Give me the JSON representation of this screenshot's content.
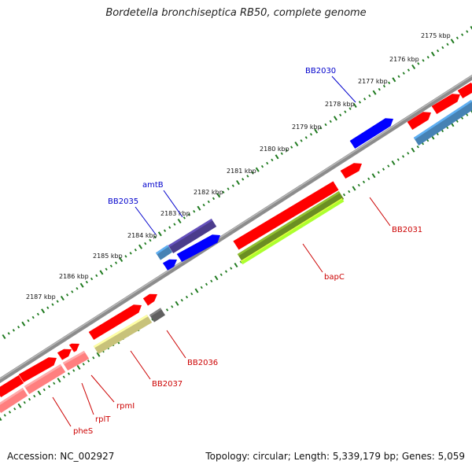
{
  "title": "Bordetella bronchiseptica RB50, complete genome",
  "footer": {
    "accession": "Accession: NC_002927",
    "summary": "Topology: circular; Length: 5,339,179 bp; Genes: 5,059"
  },
  "colors": {
    "backbone": "#8c8c8c",
    "tick": "#1f7a1f",
    "gene_forward": "#ff0000",
    "gene_reverse": "#0000ff",
    "label_forward": "#cc0000",
    "label_reverse": "#0000cc",
    "cds_red": "#ff7f7f",
    "cds_olive": "#6b8e23",
    "cds_lime": "#adff2f",
    "cds_khaki": "#c8c27a",
    "cds_purple": "#4b3c8c",
    "cds_steel": "#4682b4",
    "cds_gray": "#606060"
  },
  "scale_labels": [
    "2175 kbp",
    "2176 kbp",
    "2177 kbp",
    "2178 kbp",
    "2179 kbp",
    "2180 kbp",
    "2181 kbp",
    "2182 kbp",
    "2183 kbp",
    "2184 kbp",
    "2185 kbp",
    "2186 kbp",
    "2187 kbp"
  ],
  "gene_labels": [
    {
      "name": "BB2030",
      "strand": "reverse"
    },
    {
      "name": "amtB",
      "strand": "reverse"
    },
    {
      "name": "BB2035",
      "strand": "reverse"
    },
    {
      "name": "BB2031",
      "strand": "forward"
    },
    {
      "name": "bapC",
      "strand": "forward"
    },
    {
      "name": "BB2036",
      "strand": "forward"
    },
    {
      "name": "BB2037",
      "strand": "forward"
    },
    {
      "name": "rpmI",
      "strand": "forward"
    },
    {
      "name": "rplT",
      "strand": "forward"
    },
    {
      "name": "pheS",
      "strand": "forward"
    }
  ]
}
